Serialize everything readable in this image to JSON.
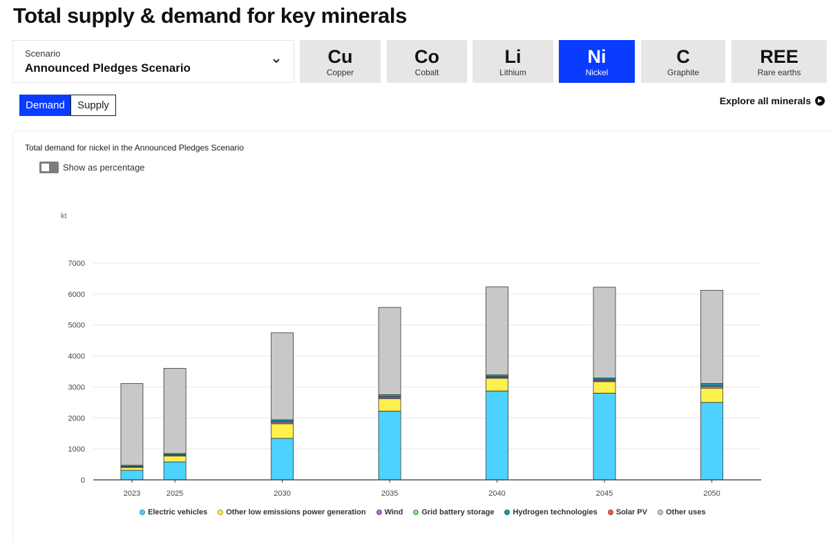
{
  "page": {
    "title": "Total supply & demand for key minerals"
  },
  "scenario": {
    "label": "Scenario",
    "value": "Announced Pledges Scenario",
    "icon": "chevron-down-icon"
  },
  "minerals": [
    {
      "symbol": "Cu",
      "name": "Copper",
      "active": false
    },
    {
      "symbol": "Co",
      "name": "Cobalt",
      "active": false
    },
    {
      "symbol": "Li",
      "name": "Lithium",
      "active": false
    },
    {
      "symbol": "Ni",
      "name": "Nickel",
      "active": true
    },
    {
      "symbol": "C",
      "name": "Graphite",
      "active": false
    },
    {
      "symbol": "REE",
      "name": "Rare earths",
      "active": false
    }
  ],
  "view_toggle": {
    "demand": "Demand",
    "supply": "Supply",
    "selected": "Demand"
  },
  "explore": {
    "label": "Explore all minerals",
    "icon": "arrow-right-circle-icon"
  },
  "chart_panel": {
    "title": "Total demand for nickel in the Announced Pledges Scenario",
    "percentage_toggle_label": "Show as percentage",
    "percentage_enabled": false
  },
  "colors": {
    "accent": "#0a3cff",
    "electric_vehicles": "#4dd2ff",
    "other_low_emissions": "#fff04d",
    "wind": "#b36bd9",
    "grid_battery": "#7fe07a",
    "hydrogen": "#1a9e9e",
    "solar_pv": "#f0603c",
    "other_uses": "#c8c8c8"
  },
  "chart_data": {
    "type": "bar",
    "stacked": true,
    "title": "Total demand for nickel in the Announced Pledges Scenario",
    "ylabel": "kt",
    "xlabel": "",
    "ylim": [
      0,
      7000
    ],
    "yticks": [
      0,
      1000,
      2000,
      3000,
      4000,
      5000,
      6000,
      7000
    ],
    "x": [
      2023,
      2025,
      2030,
      2035,
      2040,
      2045,
      2050
    ],
    "grid": true,
    "legend_position": "bottom",
    "series": [
      {
        "name": "Electric vehicles",
        "color": "#4dd2ff",
        "values": [
          310,
          580,
          1340,
          2220,
          2870,
          2800,
          2500
        ]
      },
      {
        "name": "Other low emissions power generation",
        "color": "#fff04d",
        "values": [
          90,
          190,
          470,
          400,
          410,
          370,
          460
        ]
      },
      {
        "name": "Wind",
        "color": "#b36bd9",
        "values": [
          20,
          30,
          50,
          40,
          30,
          40,
          60
        ]
      },
      {
        "name": "Grid battery storage",
        "color": "#7fe07a",
        "values": [
          10,
          10,
          30,
          30,
          20,
          20,
          30
        ]
      },
      {
        "name": "Hydrogen technologies",
        "color": "#1a9e9e",
        "values": [
          40,
          40,
          50,
          60,
          60,
          60,
          60
        ]
      },
      {
        "name": "Solar PV",
        "color": "#f0603c",
        "values": [
          0,
          0,
          0,
          0,
          0,
          0,
          0
        ]
      },
      {
        "name": "Other uses",
        "color": "#c8c8c8",
        "values": [
          2640,
          2750,
          2810,
          2820,
          2840,
          2930,
          3010
        ]
      }
    ]
  }
}
